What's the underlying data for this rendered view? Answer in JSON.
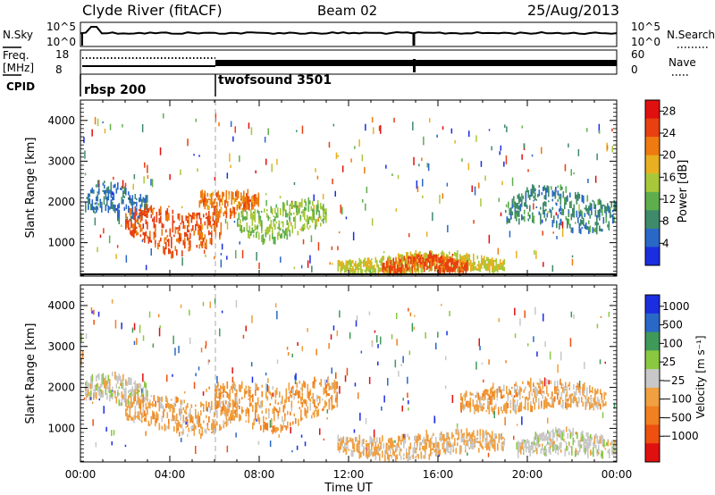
{
  "header": {
    "station": "Clyde River (fitACF)",
    "beam": "Beam 02",
    "date": "25/Aug/2013"
  },
  "top_panels": {
    "nsky": {
      "label": "N.Sky",
      "ticks": [
        "10^5",
        "10^0"
      ]
    },
    "nsearch": {
      "label": "N.Search",
      "ticks": [
        "10^5",
        "10^0"
      ]
    },
    "freq": {
      "label_line1": "Freq.",
      "label_line2": "[MHz]",
      "ticks": [
        "18",
        "8"
      ]
    },
    "nave": {
      "label": "Nave",
      "ticks": [
        "60",
        "0"
      ]
    },
    "cpid": {
      "label": "CPID",
      "modes": [
        {
          "name": "rbsp 200",
          "start_hour": 0
        },
        {
          "name": "twofsound 3501",
          "start_hour": 6
        }
      ]
    }
  },
  "chart_data": [
    {
      "type": "heatmap",
      "title": "",
      "xlabel": "Time UT",
      "ylabel": "Slant Range [km]",
      "x_ticks": [
        "00:00",
        "04:00",
        "08:00",
        "12:00",
        "16:00",
        "20:00",
        "00:00"
      ],
      "xlim": [
        0,
        24
      ],
      "ylim": [
        180,
        4500
      ],
      "y_ticks": [
        "1000",
        "2000",
        "3000",
        "4000"
      ],
      "y_tick_values": [
        1000,
        2000,
        3000,
        4000
      ],
      "colorbar": {
        "label": "Power [dB]",
        "ticks": [
          "4",
          "8",
          "12",
          "16",
          "20",
          "24",
          "28"
        ],
        "range": [
          0,
          30
        ],
        "colors": [
          "#1a2ee0",
          "#2a68c8",
          "#3f8a6a",
          "#5fae4e",
          "#a8c83a",
          "#e8b020",
          "#ee7a10",
          "#e84010",
          "#e01010"
        ]
      },
      "regions": [
        {
          "t0": 0.2,
          "t1": 3.0,
          "r0": 1500,
          "r1": 2400,
          "value": 6
        },
        {
          "t0": 2.0,
          "t1": 6.3,
          "r0": 800,
          "r1": 1900,
          "value": 24
        },
        {
          "t0": 5.3,
          "t1": 8.0,
          "r0": 1700,
          "r1": 2300,
          "value": 22
        },
        {
          "t0": 7.0,
          "t1": 11.0,
          "r0": 1100,
          "r1": 2000,
          "value": 14
        },
        {
          "t0": 11.5,
          "t1": 19.0,
          "r0": 250,
          "r1": 700,
          "value": 16
        },
        {
          "t0": 13.5,
          "t1": 17.3,
          "r0": 250,
          "r1": 650,
          "value": 24
        },
        {
          "t0": 19.0,
          "t1": 24.0,
          "r0": 1300,
          "r1": 2300,
          "value": 8
        }
      ]
    },
    {
      "type": "heatmap",
      "title": "",
      "xlabel": "Time UT",
      "ylabel": "Slant Range [km]",
      "x_ticks": [
        "00:00",
        "04:00",
        "08:00",
        "12:00",
        "16:00",
        "20:00",
        "00:00"
      ],
      "xlim": [
        0,
        24
      ],
      "ylim": [
        180,
        4500
      ],
      "y_ticks": [
        "1000",
        "2000",
        "3000",
        "4000"
      ],
      "y_tick_values": [
        1000,
        2000,
        3000,
        4000
      ],
      "colorbar": {
        "label": "Velocity [m s⁻¹]",
        "ticks": [
          "1000",
          "500",
          "100",
          "25",
          "−25",
          "−100",
          "−500",
          "−1000"
        ],
        "range": [
          -1000,
          1000
        ],
        "colors": [
          "#e01010",
          "#ee5010",
          "#f08020",
          "#f0a040",
          "#c8c8c8",
          "#8ac840",
          "#3f9a5a",
          "#2a68c8",
          "#1a2ee0"
        ]
      },
      "regions": [
        {
          "t0": 0.2,
          "t1": 3.0,
          "r0": 1600,
          "r1": 2300,
          "value": 0
        },
        {
          "t0": 2.0,
          "t1": 7.0,
          "r0": 900,
          "r1": 1800,
          "value": -200
        },
        {
          "t0": 6.0,
          "t1": 11.5,
          "r0": 1100,
          "r1": 2200,
          "value": -250
        },
        {
          "t0": 11.5,
          "t1": 19.0,
          "r0": 300,
          "r1": 900,
          "value": -150
        },
        {
          "t0": 17.0,
          "t1": 23.5,
          "r0": 1400,
          "r1": 2100,
          "value": -200
        },
        {
          "t0": 19.5,
          "t1": 24.0,
          "r0": 300,
          "r1": 900,
          "value": 0
        }
      ]
    }
  ]
}
